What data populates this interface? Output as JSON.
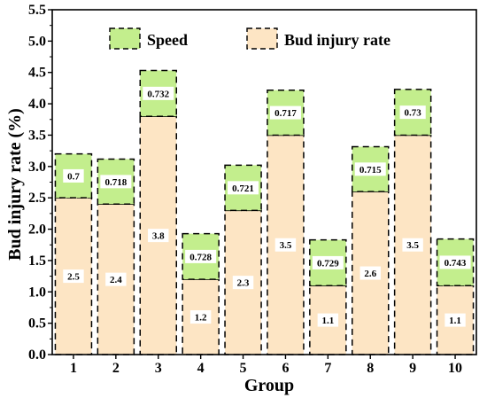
{
  "chart_data": {
    "type": "bar",
    "stacked": true,
    "categories": [
      "1",
      "2",
      "3",
      "4",
      "5",
      "6",
      "7",
      "8",
      "9",
      "10"
    ],
    "series": [
      {
        "name": "Bud injury rate",
        "values": [
          2.5,
          2.4,
          3.8,
          1.2,
          2.3,
          3.5,
          1.1,
          2.6,
          3.5,
          1.1
        ],
        "labels": [
          "2.5",
          "2.4",
          "3.8",
          "1.2",
          "2.3",
          "3.5",
          "1.1",
          "2.6",
          "3.5",
          "1.1"
        ],
        "color": "#FDE5C4"
      },
      {
        "name": "Speed",
        "values": [
          0.7,
          0.718,
          0.732,
          0.728,
          0.721,
          0.717,
          0.729,
          0.715,
          0.73,
          0.743
        ],
        "labels": [
          "0.7",
          "0.718",
          "0.732",
          "0.728",
          "0.721",
          "0.717",
          "0.729",
          "0.715",
          "0.73",
          "0.743"
        ],
        "color": "#C3EE8D"
      }
    ],
    "xlabel": "Group",
    "ylabel": "Bud injury rate (%)",
    "ylim": [
      0,
      5.5
    ],
    "yticks": [
      0.0,
      0.5,
      1.0,
      1.5,
      2.0,
      2.5,
      3.0,
      3.5,
      4.0,
      4.5,
      5.0,
      5.5
    ],
    "ytick_labels": [
      "0.0",
      "0.5",
      "1.0",
      "1.5",
      "2.0",
      "2.5",
      "3.0",
      "3.5",
      "4.0",
      "4.5",
      "5.0",
      "5.5"
    ],
    "legend_position": "top",
    "grid": false
  }
}
